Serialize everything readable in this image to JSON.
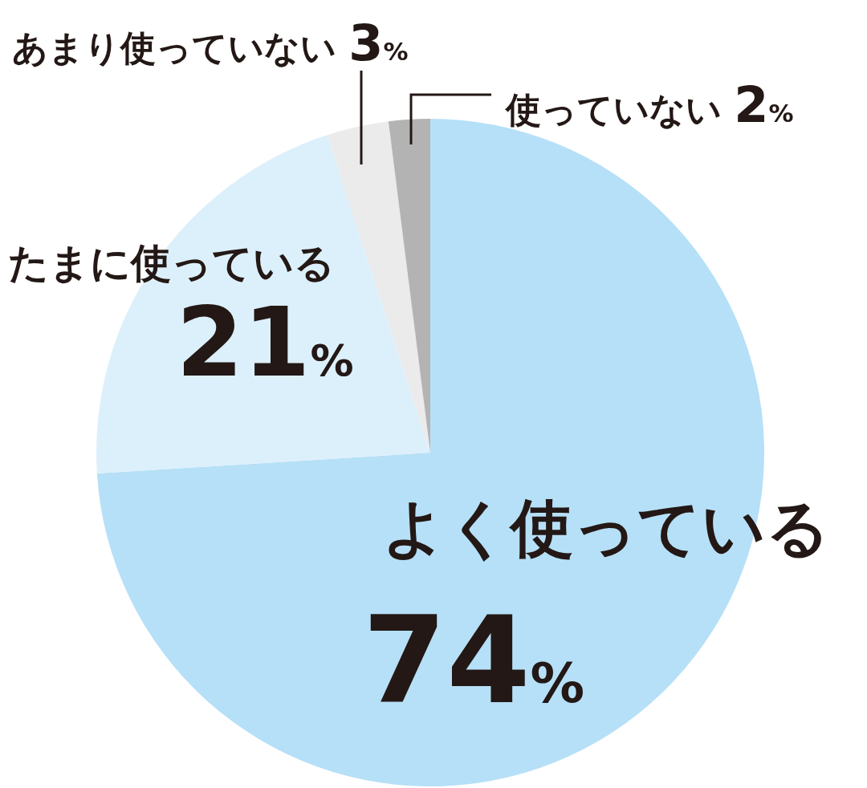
{
  "chart_data": {
    "type": "pie",
    "categories": [
      "よく使っている",
      "たまに使っている",
      "あまり使っていない",
      "使っていない"
    ],
    "values": [
      74,
      21,
      3,
      2
    ],
    "colors": [
      "#b6e0f7",
      "#dcf0fb",
      "#ebebeb",
      "#b3b3b3"
    ],
    "value_labels": [
      "74%",
      "21%",
      "3%",
      "2%"
    ]
  }
}
